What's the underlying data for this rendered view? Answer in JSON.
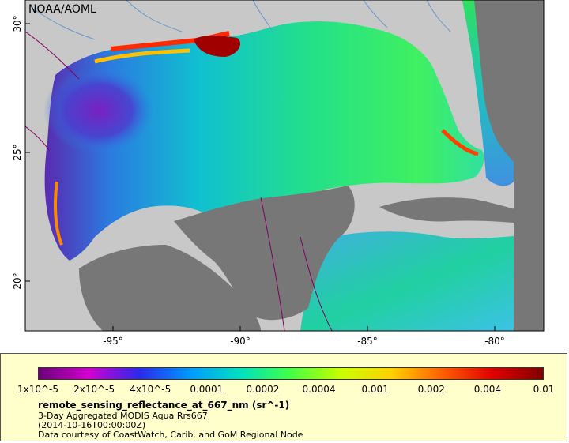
{
  "map": {
    "credit": "NOAA/AOML",
    "lat_ticks": [
      {
        "label": "30°",
        "lat": 30
      },
      {
        "label": "25°",
        "lat": 25
      },
      {
        "label": "20°",
        "lat": 20
      }
    ],
    "lon_ticks": [
      {
        "label": "-95°",
        "lon": -95
      },
      {
        "label": "-90°",
        "lon": -90
      },
      {
        "label": "-85°",
        "lon": -85
      },
      {
        "label": "-80°",
        "lon": -80
      }
    ],
    "colors": {
      "ocean_bg": "#c8c8c8",
      "land": "#777777",
      "rivers": "#6699cc",
      "borders": "#800060",
      "frame": "#000000"
    }
  },
  "legend": {
    "colorbar_stops": [
      "#6b007a",
      "#d100d1",
      "#2a2ae8",
      "#0099ff",
      "#00e0c0",
      "#44ff44",
      "#c8ff00",
      "#ffd000",
      "#ff6000",
      "#e00000",
      "#800000"
    ],
    "tick_labels": [
      "1x10^-5",
      "2x10^-5",
      "4x10^-5",
      "0.0001",
      "0.0002",
      "0.0004",
      "0.001",
      "0.002",
      "0.004",
      "0.01"
    ],
    "title": "remote_sensing_reflectance_at_667_nm (sr^-1)",
    "line1": "3-Day Aggregated MODIS Aqua Rrs667",
    "line2": "(2014-10-16T00:00:00Z)",
    "line3": "Data courtesy of CoastWatch, Carib. and GoM Regional Node"
  }
}
